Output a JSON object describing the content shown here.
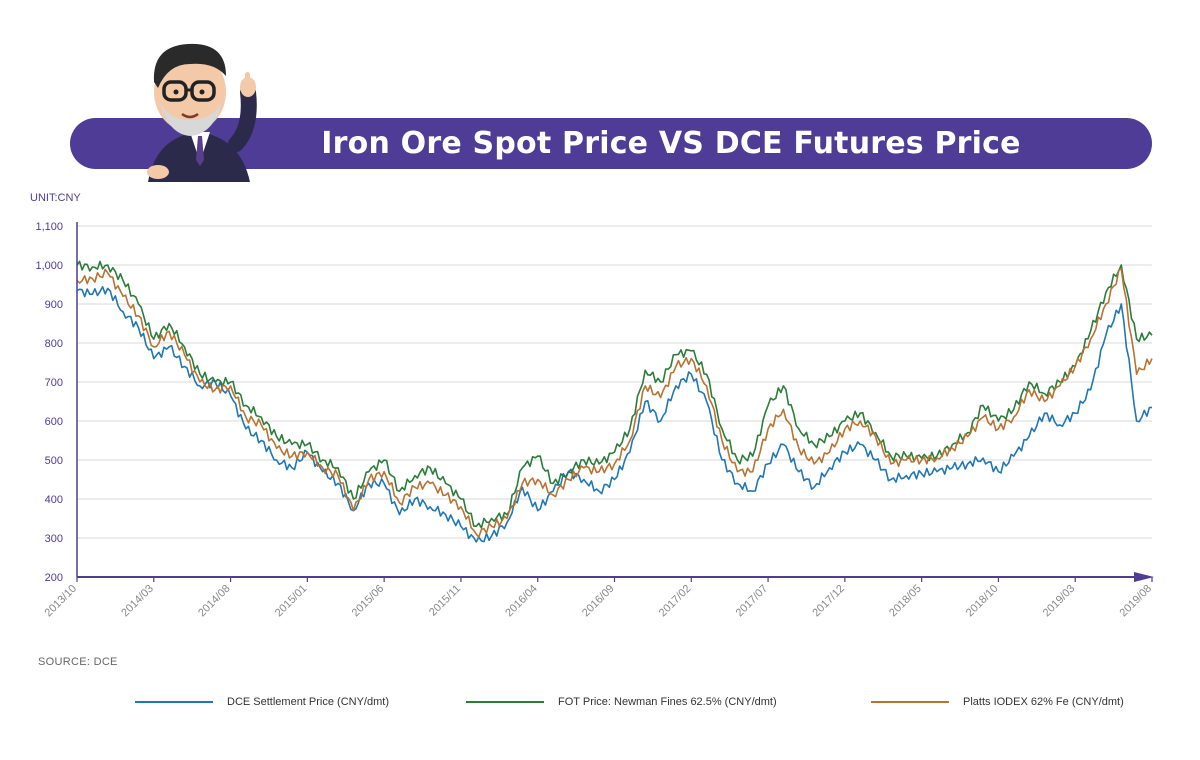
{
  "header": {
    "title": "Iron Ore Spot Price VS DCE Futures Price"
  },
  "unit_label": "UNIT:CNY",
  "source_label": "SOURCE: DCE",
  "colors": {
    "banner": "#4e3c96",
    "axis": "#4e3c96",
    "grid": "#d9d9d9",
    "dce": "#1f77b4",
    "fot": "#2a7d3a",
    "platts": "#b87333"
  },
  "chart_data": {
    "type": "line",
    "ylim": [
      200,
      1100
    ],
    "yticks": [
      200,
      300,
      400,
      500,
      600,
      700,
      800,
      900,
      1000,
      1100
    ],
    "ytick_labels": [
      "200",
      "300",
      "400",
      "500",
      "600",
      "700",
      "800",
      "900",
      "1,000",
      "1,100"
    ],
    "xlim": [
      "2013/10",
      "2019/08"
    ],
    "xtick_labels": [
      "2013/10",
      "2014/03",
      "2014/08",
      "2015/01",
      "2015/06",
      "2015/11",
      "2016/04",
      "2016/09",
      "2017/02",
      "2017/07",
      "2017/12",
      "2018/05",
      "2018/10",
      "2019/03",
      "2019/08"
    ],
    "grid": true,
    "legend_position": "bottom",
    "series": [
      {
        "name": "DCE Settlement Price (CNY/dmt)",
        "color": "#1f77b4",
        "points": [
          [
            "2013/10",
            935
          ],
          [
            "2013/11",
            925
          ],
          [
            "2013/12",
            940
          ],
          [
            "2014/01",
            880
          ],
          [
            "2014/02",
            840
          ],
          [
            "2014/03",
            760
          ],
          [
            "2014/04",
            790
          ],
          [
            "2014/05",
            740
          ],
          [
            "2014/06",
            690
          ],
          [
            "2014/07",
            700
          ],
          [
            "2014/08",
            665
          ],
          [
            "2014/09",
            580
          ],
          [
            "2014/10",
            550
          ],
          [
            "2014/11",
            500
          ],
          [
            "2014/12",
            480
          ],
          [
            "2015/01",
            520
          ],
          [
            "2015/02",
            470
          ],
          [
            "2015/03",
            440
          ],
          [
            "2015/04",
            370
          ],
          [
            "2015/05",
            440
          ],
          [
            "2015/06",
            440
          ],
          [
            "2015/07",
            360
          ],
          [
            "2015/08",
            400
          ],
          [
            "2015/09",
            380
          ],
          [
            "2015/10",
            360
          ],
          [
            "2015/11",
            330
          ],
          [
            "2015/12",
            290
          ],
          [
            "2016/01",
            305
          ],
          [
            "2016/02",
            340
          ],
          [
            "2016/03",
            430
          ],
          [
            "2016/04",
            370
          ],
          [
            "2016/05",
            420
          ],
          [
            "2016/06",
            470
          ],
          [
            "2016/07",
            450
          ],
          [
            "2016/08",
            420
          ],
          [
            "2016/09",
            450
          ],
          [
            "2016/10",
            520
          ],
          [
            "2016/11",
            650
          ],
          [
            "2016/12",
            600
          ],
          [
            "2017/01",
            690
          ],
          [
            "2017/02",
            720
          ],
          [
            "2017/03",
            650
          ],
          [
            "2017/04",
            500
          ],
          [
            "2017/05",
            440
          ],
          [
            "2017/06",
            420
          ],
          [
            "2017/07",
            490
          ],
          [
            "2017/08",
            540
          ],
          [
            "2017/09",
            470
          ],
          [
            "2017/10",
            430
          ],
          [
            "2017/11",
            480
          ],
          [
            "2017/12",
            520
          ],
          [
            "2018/01",
            540
          ],
          [
            "2018/02",
            500
          ],
          [
            "2018/03",
            450
          ],
          [
            "2018/04",
            460
          ],
          [
            "2018/05",
            465
          ],
          [
            "2018/06",
            470
          ],
          [
            "2018/07",
            480
          ],
          [
            "2018/08",
            490
          ],
          [
            "2018/09",
            505
          ],
          [
            "2018/10",
            470
          ],
          [
            "2018/11",
            510
          ],
          [
            "2018/12",
            560
          ],
          [
            "2019/01",
            620
          ],
          [
            "2019/02",
            590
          ],
          [
            "2019/03",
            620
          ],
          [
            "2019/04",
            680
          ],
          [
            "2019/05",
            820
          ],
          [
            "2019/06",
            900
          ],
          [
            "2019/07",
            600
          ],
          [
            "2019/08",
            635
          ]
        ]
      },
      {
        "name": "FOT Price: Newman Fines 62.5% (CNY/dmt)",
        "color": "#2a7d3a",
        "points": [
          [
            "2013/10",
            1000
          ],
          [
            "2013/11",
            995
          ],
          [
            "2013/12",
            1000
          ],
          [
            "2014/01",
            960
          ],
          [
            "2014/02",
            900
          ],
          [
            "2014/03",
            810
          ],
          [
            "2014/04",
            850
          ],
          [
            "2014/05",
            790
          ],
          [
            "2014/06",
            720
          ],
          [
            "2014/07",
            700
          ],
          [
            "2014/08",
            700
          ],
          [
            "2014/09",
            640
          ],
          [
            "2014/10",
            610
          ],
          [
            "2014/11",
            560
          ],
          [
            "2014/12",
            540
          ],
          [
            "2015/01",
            540
          ],
          [
            "2015/02",
            500
          ],
          [
            "2015/03",
            480
          ],
          [
            "2015/04",
            400
          ],
          [
            "2015/05",
            470
          ],
          [
            "2015/06",
            500
          ],
          [
            "2015/07",
            420
          ],
          [
            "2015/08",
            460
          ],
          [
            "2015/09",
            480
          ],
          [
            "2015/10",
            440
          ],
          [
            "2015/11",
            400
          ],
          [
            "2015/12",
            330
          ],
          [
            "2016/01",
            350
          ],
          [
            "2016/02",
            360
          ],
          [
            "2016/03",
            480
          ],
          [
            "2016/04",
            510
          ],
          [
            "2016/05",
            440
          ],
          [
            "2016/06",
            470
          ],
          [
            "2016/07",
            500
          ],
          [
            "2016/08",
            490
          ],
          [
            "2016/09",
            520
          ],
          [
            "2016/10",
            580
          ],
          [
            "2016/11",
            730
          ],
          [
            "2016/12",
            700
          ],
          [
            "2017/01",
            770
          ],
          [
            "2017/02",
            780
          ],
          [
            "2017/03",
            720
          ],
          [
            "2017/04",
            580
          ],
          [
            "2017/05",
            500
          ],
          [
            "2017/06",
            510
          ],
          [
            "2017/07",
            640
          ],
          [
            "2017/08",
            690
          ],
          [
            "2017/09",
            580
          ],
          [
            "2017/10",
            540
          ],
          [
            "2017/11",
            560
          ],
          [
            "2017/12",
            600
          ],
          [
            "2018/01",
            620
          ],
          [
            "2018/02",
            570
          ],
          [
            "2018/03",
            510
          ],
          [
            "2018/04",
            510
          ],
          [
            "2018/05",
            505
          ],
          [
            "2018/06",
            510
          ],
          [
            "2018/07",
            540
          ],
          [
            "2018/08",
            570
          ],
          [
            "2018/09",
            640
          ],
          [
            "2018/10",
            600
          ],
          [
            "2018/11",
            630
          ],
          [
            "2018/12",
            700
          ],
          [
            "2019/01",
            670
          ],
          [
            "2019/02",
            700
          ],
          [
            "2019/03",
            740
          ],
          [
            "2019/04",
            830
          ],
          [
            "2019/05",
            930
          ],
          [
            "2019/06",
            1000
          ],
          [
            "2019/07",
            810
          ],
          [
            "2019/08",
            820
          ]
        ]
      },
      {
        "name": "Platts IODEX 62% Fe (CNY/dmt)",
        "color": "#b87333",
        "points": [
          [
            "2013/10",
            960
          ],
          [
            "2013/11",
            965
          ],
          [
            "2013/12",
            980
          ],
          [
            "2014/01",
            920
          ],
          [
            "2014/02",
            870
          ],
          [
            "2014/03",
            790
          ],
          [
            "2014/04",
            830
          ],
          [
            "2014/05",
            770
          ],
          [
            "2014/06",
            700
          ],
          [
            "2014/07",
            680
          ],
          [
            "2014/08",
            690
          ],
          [
            "2014/09",
            610
          ],
          [
            "2014/10",
            590
          ],
          [
            "2014/11",
            530
          ],
          [
            "2014/12",
            510
          ],
          [
            "2015/01",
            520
          ],
          [
            "2015/02",
            480
          ],
          [
            "2015/03",
            460
          ],
          [
            "2015/04",
            370
          ],
          [
            "2015/05",
            450
          ],
          [
            "2015/06",
            470
          ],
          [
            "2015/07",
            390
          ],
          [
            "2015/08",
            430
          ],
          [
            "2015/09",
            440
          ],
          [
            "2015/10",
            410
          ],
          [
            "2015/11",
            380
          ],
          [
            "2015/12",
            310
          ],
          [
            "2016/01",
            330
          ],
          [
            "2016/02",
            350
          ],
          [
            "2016/03",
            440
          ],
          [
            "2016/04",
            450
          ],
          [
            "2016/05",
            410
          ],
          [
            "2016/06",
            450
          ],
          [
            "2016/07",
            480
          ],
          [
            "2016/08",
            470
          ],
          [
            "2016/09",
            490
          ],
          [
            "2016/10",
            550
          ],
          [
            "2016/11",
            690
          ],
          [
            "2016/12",
            660
          ],
          [
            "2017/01",
            740
          ],
          [
            "2017/02",
            760
          ],
          [
            "2017/03",
            690
          ],
          [
            "2017/04",
            550
          ],
          [
            "2017/05",
            470
          ],
          [
            "2017/06",
            470
          ],
          [
            "2017/07",
            580
          ],
          [
            "2017/08",
            630
          ],
          [
            "2017/09",
            530
          ],
          [
            "2017/10",
            490
          ],
          [
            "2017/11",
            520
          ],
          [
            "2017/12",
            580
          ],
          [
            "2018/01",
            600
          ],
          [
            "2018/02",
            560
          ],
          [
            "2018/03",
            490
          ],
          [
            "2018/04",
            500
          ],
          [
            "2018/05",
            500
          ],
          [
            "2018/06",
            505
          ],
          [
            "2018/07",
            530
          ],
          [
            "2018/08",
            560
          ],
          [
            "2018/09",
            610
          ],
          [
            "2018/10",
            580
          ],
          [
            "2018/11",
            610
          ],
          [
            "2018/12",
            680
          ],
          [
            "2019/01",
            650
          ],
          [
            "2019/02",
            690
          ],
          [
            "2019/03",
            740
          ],
          [
            "2019/04",
            810
          ],
          [
            "2019/05",
            900
          ],
          [
            "2019/06",
            990
          ],
          [
            "2019/07",
            720
          ],
          [
            "2019/08",
            760
          ]
        ]
      }
    ]
  }
}
